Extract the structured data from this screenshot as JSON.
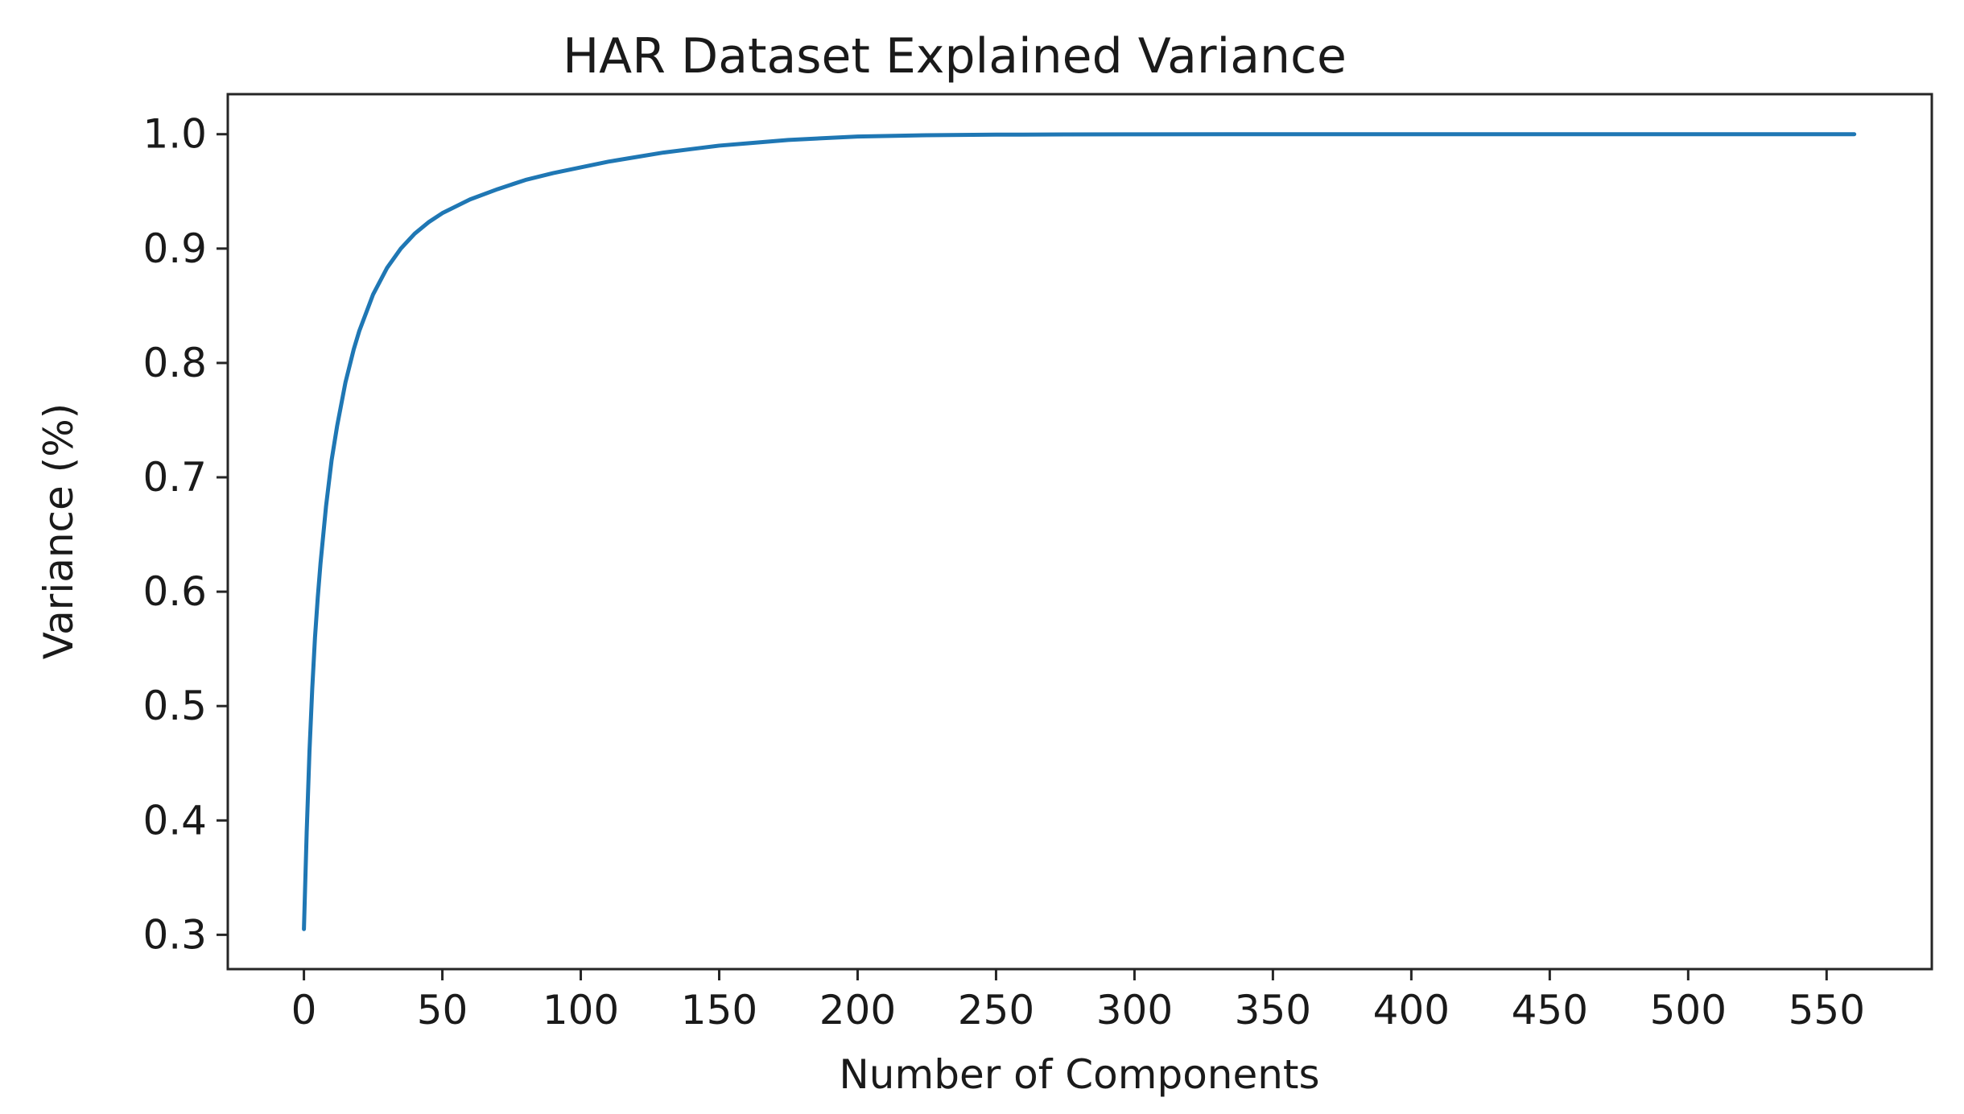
{
  "chart_data": {
    "type": "line",
    "title": "HAR Dataset Explained Variance",
    "xlabel": "Number of Components",
    "ylabel": "Variance (%)",
    "xlim": [
      -27.5,
      588
    ],
    "ylim": [
      0.27,
      1.035
    ],
    "x_ticks": [
      0,
      50,
      100,
      150,
      200,
      250,
      300,
      350,
      400,
      450,
      500,
      550
    ],
    "x_tick_labels": [
      "0",
      "50",
      "100",
      "150",
      "200",
      "250",
      "300",
      "350",
      "400",
      "450",
      "500",
      "550"
    ],
    "y_ticks": [
      0.3,
      0.4,
      0.5,
      0.6,
      0.7,
      0.8,
      0.9,
      1.0
    ],
    "y_tick_labels": [
      "0.3",
      "0.4",
      "0.5",
      "0.6",
      "0.7",
      "0.8",
      "0.9",
      "1.0"
    ],
    "grid": false,
    "legend": "none",
    "line_color": "#1f77b4",
    "series": [
      {
        "x": [
          0,
          1,
          2,
          3,
          4,
          5,
          6,
          8,
          10,
          12,
          15,
          18,
          20,
          25,
          30,
          35,
          40,
          45,
          50,
          60,
          70,
          80,
          90,
          100,
          110,
          120,
          130,
          140,
          150,
          160,
          175,
          200,
          225,
          250,
          275,
          300,
          350,
          400,
          450,
          500,
          550,
          560
        ],
        "y": [
          0.305,
          0.39,
          0.46,
          0.515,
          0.56,
          0.595,
          0.625,
          0.675,
          0.715,
          0.745,
          0.783,
          0.812,
          0.828,
          0.86,
          0.883,
          0.9,
          0.913,
          0.923,
          0.931,
          0.943,
          0.952,
          0.96,
          0.966,
          0.971,
          0.976,
          0.98,
          0.984,
          0.987,
          0.99,
          0.992,
          0.995,
          0.998,
          0.9991,
          0.9996,
          0.9998,
          0.9999,
          1.0,
          1.0,
          1.0,
          1.0,
          1.0,
          1.0
        ]
      }
    ]
  }
}
